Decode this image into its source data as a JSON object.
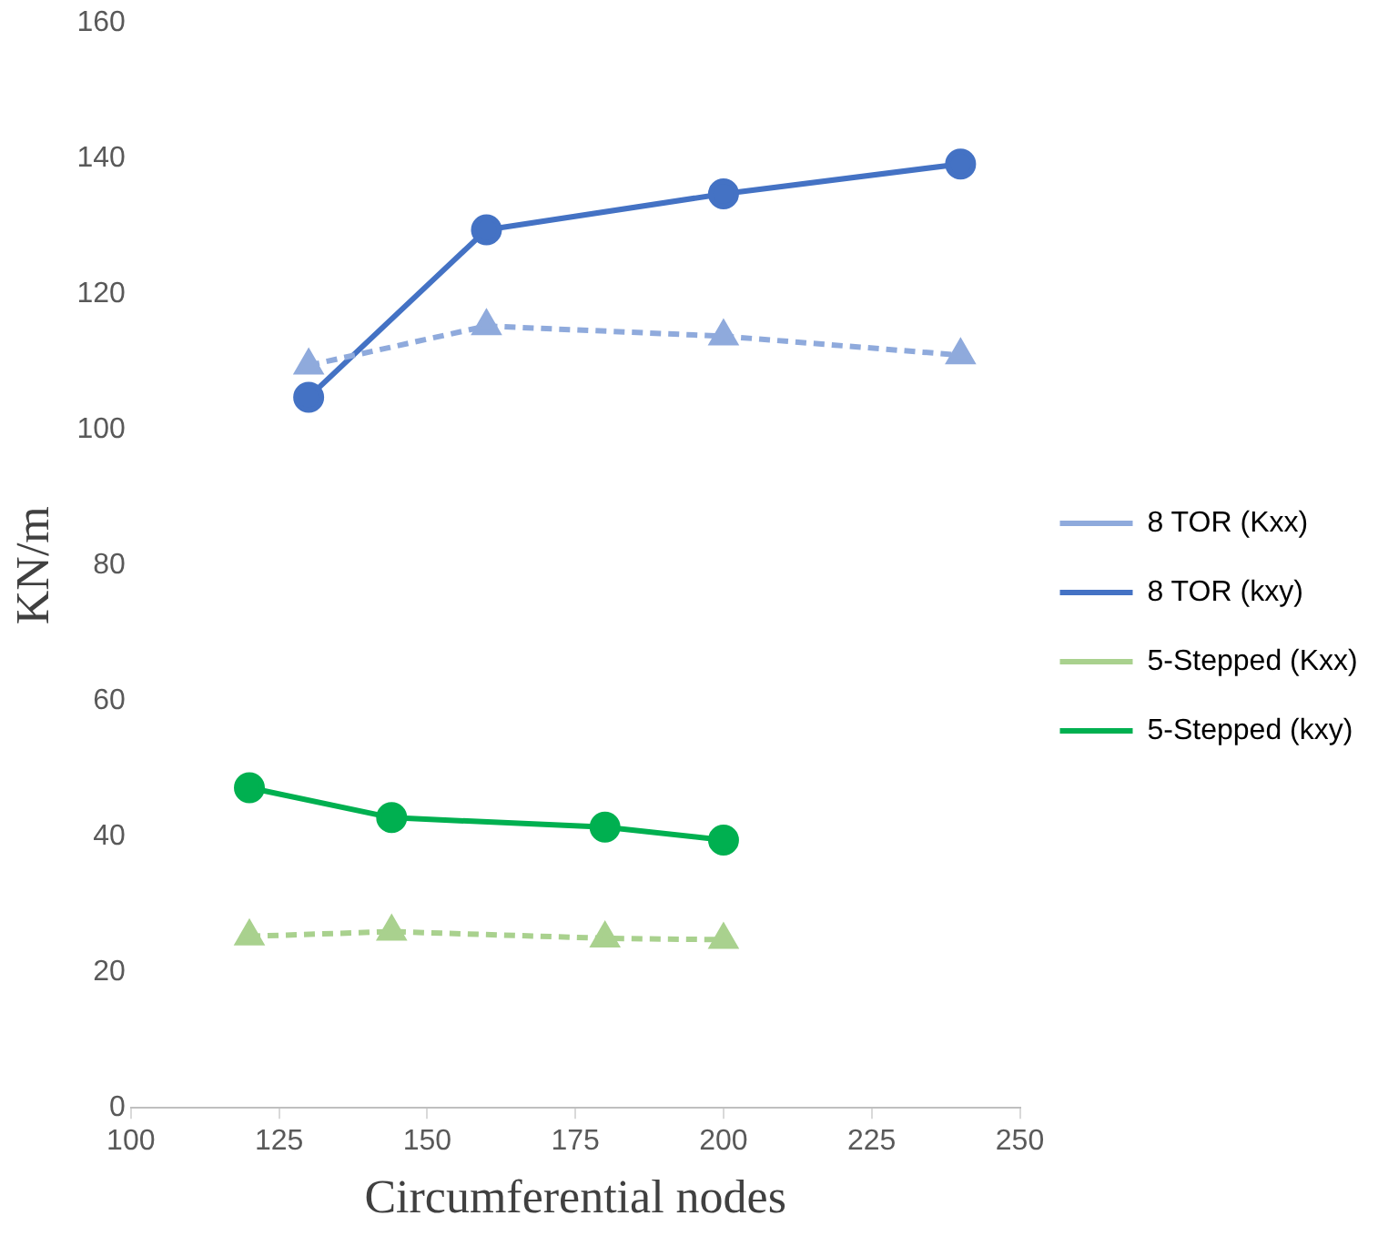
{
  "chart_data": {
    "type": "line",
    "xlabel": "Circumferential nodes",
    "ylabel": "KN/m",
    "xlim": [
      100,
      250
    ],
    "xticks": [
      100,
      125,
      150,
      175,
      200,
      225,
      250
    ],
    "ylim": [
      0,
      160
    ],
    "yticks": [
      0,
      20,
      40,
      60,
      80,
      100,
      120,
      140,
      160
    ],
    "grid": false,
    "legend": "right",
    "series": [
      {
        "name": "8 TOR (Kxx)",
        "color": "#8faadc",
        "x": [
          130,
          160,
          200,
          240
        ],
        "values": [
          109.5,
          115.3,
          113.8,
          111
        ],
        "marker": "triangle",
        "line_style": "dashed"
      },
      {
        "name": "8 TOR (kxy)",
        "color": "#4472c4",
        "x": [
          130,
          160,
          200,
          240
        ],
        "values": [
          104.8,
          129.5,
          134.8,
          139.2
        ],
        "marker": "circle",
        "line_style": "solid"
      },
      {
        "name": "5-Stepped (Kxx)",
        "color": "#a9d18e",
        "x": [
          120,
          144,
          180,
          200
        ],
        "values": [
          25.3,
          26,
          25,
          24.8
        ],
        "marker": "triangle",
        "line_style": "dashed"
      },
      {
        "name": "5-Stepped (kxy)",
        "color": "#00b050",
        "x": [
          120,
          144,
          180,
          200
        ],
        "values": [
          47.2,
          42.8,
          41.4,
          39.5
        ],
        "marker": "circle",
        "line_style": "solid"
      }
    ]
  }
}
